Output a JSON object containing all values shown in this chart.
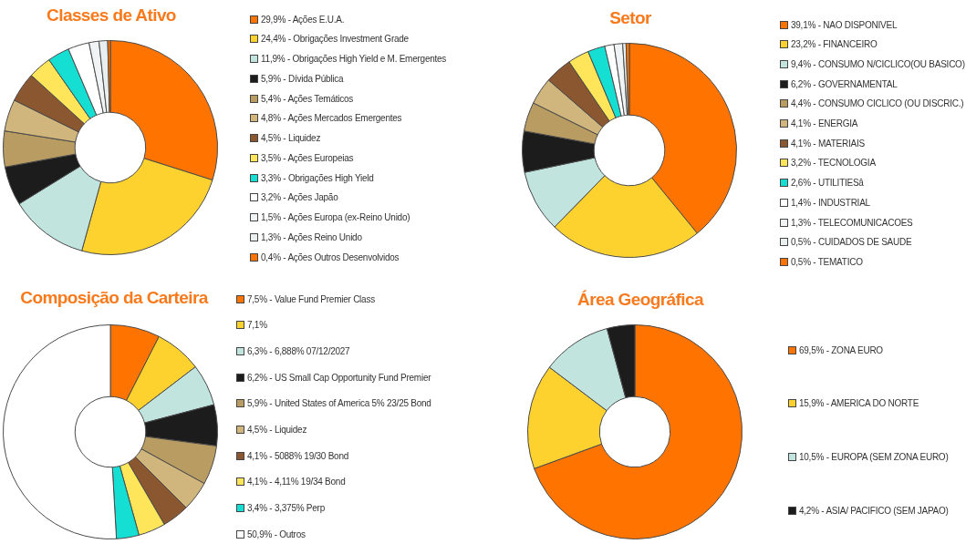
{
  "chart_data": [
    {
      "type": "donut",
      "title": "Classes de Ativo",
      "legend": "right",
      "categories": [
        "29,9% - Ações E.U.A.",
        "24,4% - Obrigações Investment Grade",
        "11,9% - Obrigações High Yield e M. Emergentes",
        "5,9% - Dívida Pública",
        "5,4% - Ações Temáticos",
        "4,8% - Ações Mercados Emergentes",
        "4,5% - Liquidez",
        "3,5% - Ações Europeias",
        "3,3% - Obrigações High Yield",
        "3,2% - Ações Japão",
        "1,5% - Ações Europa (ex-Reino Unido)",
        "1,3% - Ações Reino Unido",
        "0,4% - Ações Outros Desenvolvidos"
      ],
      "values": [
        29.9,
        24.4,
        11.9,
        5.9,
        5.4,
        4.8,
        4.5,
        3.5,
        3.3,
        3.2,
        1.5,
        1.3,
        0.4
      ],
      "colors": [
        "#ff7300",
        "#fdd22f",
        "#c2e4df",
        "#1c1c1c",
        "#b89c62",
        "#d0b57c",
        "#8b5731",
        "#ffe55a",
        "#14dfd2",
        "#ffffff",
        "#f0f4f4",
        "#e9efef",
        "#ff7300"
      ]
    },
    {
      "type": "donut",
      "title": "Setor",
      "legend": "right",
      "categories": [
        "39,1% - NAO DISPONIVEL",
        "23,2% - FINANCEIRO",
        "9,4% - CONSUMO N/CICLICO(OU BASICO)",
        "6,2% - GOVERNAMENTAL",
        "4,4% - CONSUMO CICLICO (OU DISCRIC.)",
        "4,1% - ENERGIA",
        "4,1% - MATERIAIS",
        "3,2% - TECNOLOGIA",
        "2,6% - UTILITIESâ",
        "1,4% - INDUSTRIAL",
        "1,3% - TELECOMUNICACOES",
        "0,5% - CUIDADOS DE SAUDE",
        "0,5% - TEMATICO"
      ],
      "values": [
        39.1,
        23.2,
        9.4,
        6.2,
        4.4,
        4.1,
        4.1,
        3.2,
        2.6,
        1.4,
        1.3,
        0.5,
        0.5
      ],
      "colors": [
        "#ff7300",
        "#fdd22f",
        "#c2e4df",
        "#1c1c1c",
        "#b89c62",
        "#d0b57c",
        "#8b5731",
        "#ffe55a",
        "#14dfd2",
        "#ffffff",
        "#f0f4f4",
        "#e9efef",
        "#ff7300"
      ]
    },
    {
      "type": "donut",
      "title": "Composição da Carteira",
      "legend": "right",
      "categories": [
        "7,5% - Value Fund Premier Class",
        "7,1%",
        "6,3% - 6,888% 07/12/2027",
        "6,2% - US Small Cap Opportunity Fund Premier",
        "5,9% - United States of America 5% 23/25 Bond",
        "4,5% - Liquidez",
        "4,1% - 5088% 19/30 Bond",
        "4,1% - 4,11% 19/34 Bond",
        "3,4% - 3,375% Perp",
        "50,9% - Outros"
      ],
      "values": [
        7.5,
        7.1,
        6.3,
        6.2,
        5.9,
        4.5,
        4.1,
        4.1,
        3.4,
        50.9
      ],
      "colors": [
        "#ff7300",
        "#fdd22f",
        "#c2e4df",
        "#1c1c1c",
        "#b89c62",
        "#d0b57c",
        "#8b5731",
        "#ffe55a",
        "#14dfd2",
        "#ffffff"
      ]
    },
    {
      "type": "donut",
      "title": "Área Geográfica",
      "legend": "right",
      "categories": [
        "69,5% - ZONA EURO",
        "15,9% - AMERICA DO NORTE",
        "10,5% - EUROPA (SEM ZONA EURO)",
        "4,2% - ASIA/ PACIFICO (SEM JAPAO)"
      ],
      "values": [
        69.5,
        15.9,
        10.5,
        4.2
      ],
      "colors": [
        "#ff7300",
        "#fdd22f",
        "#c2e4df",
        "#1c1c1c"
      ]
    }
  ]
}
